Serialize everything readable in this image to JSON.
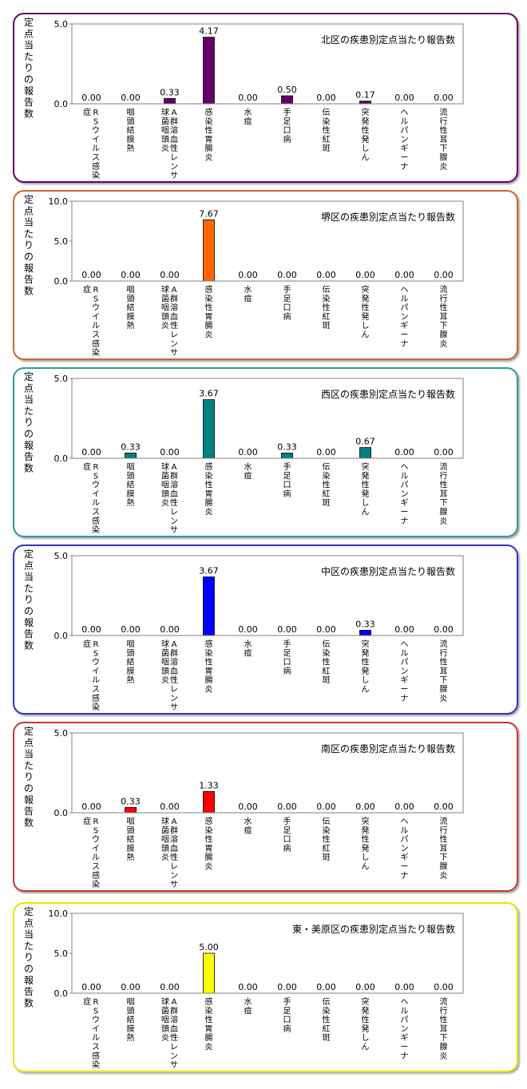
{
  "chart_data": [
    {
      "type": "bar",
      "title": "北区の疾患別定点当たり報告数",
      "ylabel": "定点当たりの報告数",
      "ylim": [
        0,
        5
      ],
      "yticks": [
        "5.0",
        "0.0"
      ],
      "color": "#660066",
      "categories": [
        "RSウイルス感染症",
        "咽頭結膜熱",
        "A群溶血性レンサ球菌咽頭炎",
        "感染性胃腸炎",
        "水痘",
        "手足口病",
        "伝染性紅斑",
        "突発性発しん",
        "ヘルパンギーナ",
        "流行性耳下腺炎"
      ],
      "values": [
        0.0,
        0.0,
        0.33,
        4.17,
        0.0,
        0.5,
        0.0,
        0.17,
        0.0,
        0.0
      ],
      "labels": [
        "0.00",
        "0.00",
        "0.33",
        "4.17",
        "0.00",
        "0.50",
        "0.00",
        "0.17",
        "0.00",
        "0.00"
      ]
    },
    {
      "type": "bar",
      "title": "堺区の疾患別定点当たり報告数",
      "ylabel": "定点当たりの報告数",
      "ylim": [
        0,
        10
      ],
      "yticks": [
        "10.0",
        "5.0",
        "0.0"
      ],
      "color": "#FF6600",
      "categories": [
        "RSウイルス感染症",
        "咽頭結膜熱",
        "A群溶血性レンサ球菌咽頭炎",
        "感染性胃腸炎",
        "水痘",
        "手足口病",
        "伝染性紅斑",
        "突発性発しん",
        "ヘルパンギーナ",
        "流行性耳下腺炎"
      ],
      "values": [
        0.0,
        0.0,
        0.0,
        7.67,
        0.0,
        0.0,
        0.0,
        0.0,
        0.0,
        0.0
      ],
      "labels": [
        "0.00",
        "0.00",
        "0.00",
        "7.67",
        "0.00",
        "0.00",
        "0.00",
        "0.00",
        "0.00",
        "0.00"
      ]
    },
    {
      "type": "bar",
      "title": "西区の疾患別定点当たり報告数",
      "ylabel": "定点当たりの報告数",
      "ylim": [
        0,
        5
      ],
      "yticks": [
        "5.0",
        "0.0"
      ],
      "color": "#008080",
      "categories": [
        "RSウイルス感染症",
        "咽頭結膜熱",
        "A群溶血性レンサ球菌咽頭炎",
        "感染性胃腸炎",
        "水痘",
        "手足口病",
        "伝染性紅斑",
        "突発性発しん",
        "ヘルパンギーナ",
        "流行性耳下腺炎"
      ],
      "values": [
        0.0,
        0.33,
        0.0,
        3.67,
        0.0,
        0.33,
        0.0,
        0.67,
        0.0,
        0.0
      ],
      "labels": [
        "0.00",
        "0.33",
        "0.00",
        "3.67",
        "0.00",
        "0.33",
        "0.00",
        "0.67",
        "0.00",
        "0.00"
      ]
    },
    {
      "type": "bar",
      "title": "中区の疾患別定点当たり報告数",
      "ylabel": "定点当たりの報告数",
      "ylim": [
        0,
        5
      ],
      "yticks": [
        "5.0",
        "0.0"
      ],
      "color": "#0000FF",
      "categories": [
        "RSウイルス感染症",
        "咽頭結膜熱",
        "A群溶血性レンサ球菌咽頭炎",
        "感染性胃腸炎",
        "水痘",
        "手足口病",
        "伝染性紅斑",
        "突発性発しん",
        "ヘルパンギーナ",
        "流行性耳下腺炎"
      ],
      "values": [
        0.0,
        0.0,
        0.0,
        3.67,
        0.0,
        0.0,
        0.0,
        0.33,
        0.0,
        0.0
      ],
      "labels": [
        "0.00",
        "0.00",
        "0.00",
        "3.67",
        "0.00",
        "0.00",
        "0.00",
        "0.33",
        "0.00",
        "0.00"
      ]
    },
    {
      "type": "bar",
      "title": "南区の疾患別定点当たり報告数",
      "ylabel": "定点当たりの報告数",
      "ylim": [
        0,
        5
      ],
      "yticks": [
        "5.0",
        "0.0"
      ],
      "color": "#FF0000",
      "categories": [
        "RSウイルス感染症",
        "咽頭結膜熱",
        "A群溶血性レンサ球菌咽頭炎",
        "感染性胃腸炎",
        "水痘",
        "手足口病",
        "伝染性紅斑",
        "突発性発しん",
        "ヘルパンギーナ",
        "流行性耳下腺炎"
      ],
      "values": [
        0.0,
        0.33,
        0.0,
        1.33,
        0.0,
        0.0,
        0.0,
        0.0,
        0.0,
        0.0
      ],
      "labels": [
        "0.00",
        "0.33",
        "0.00",
        "1.33",
        "0.00",
        "0.00",
        "0.00",
        "0.00",
        "0.00",
        "0.00"
      ]
    },
    {
      "type": "bar",
      "title": "東・美原区の疾患別定点当たり報告数",
      "ylabel": "定点当たりの報告数",
      "ylim": [
        0,
        10
      ],
      "yticks": [
        "10.0",
        "5.0",
        "0.0"
      ],
      "color": "#FFFF00",
      "categories": [
        "RSウイルス感染症",
        "咽頭結膜熱",
        "A群溶血性レンサ球菌咽頭炎",
        "感染性胃腸炎",
        "水痘",
        "手足口病",
        "伝染性紅斑",
        "突発性発しん",
        "ヘルパンギーナ",
        "流行性耳下腺炎"
      ],
      "values": [
        0.0,
        0.0,
        0.0,
        5.0,
        0.0,
        0.0,
        0.0,
        0.0,
        0.0,
        0.0
      ],
      "labels": [
        "0.00",
        "0.00",
        "0.00",
        "5.00",
        "0.00",
        "0.00",
        "0.00",
        "0.00",
        "0.00",
        "0.00"
      ]
    }
  ],
  "panel_borders": [
    "#660066",
    "#CC6633",
    "#339999",
    "#3333CC",
    "#CC3333",
    "#E6E600"
  ]
}
